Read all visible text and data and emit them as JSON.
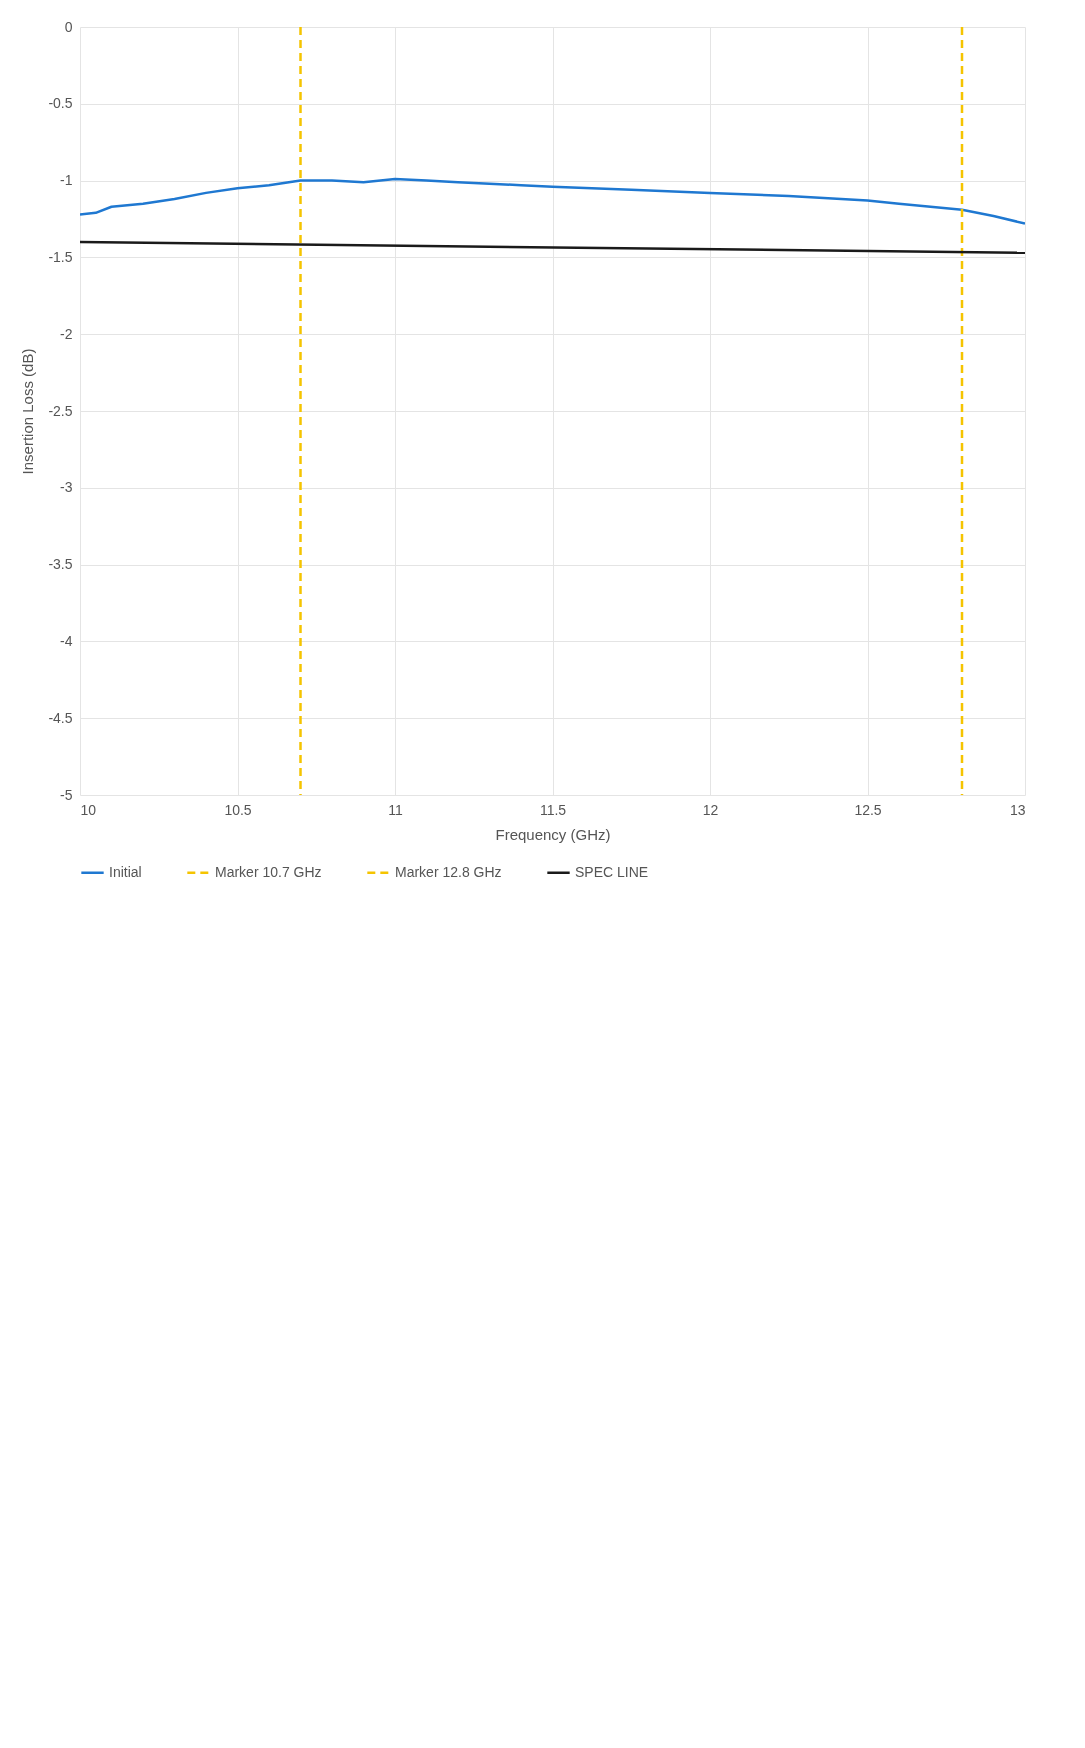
{
  "chart_data": {
    "type": "line",
    "xlabel": "Frequency (GHz)",
    "ylabel": "Insertion Loss (dB)",
    "xlim": [
      10,
      13
    ],
    "xticks": [
      10,
      10.5,
      11,
      11.5,
      12,
      12.5,
      13
    ],
    "ylim": [
      -5,
      0
    ],
    "yticks": [
      -5,
      -4.5,
      -4,
      -3.5,
      -3,
      -2.5,
      -2,
      -1.5,
      -1,
      -0.5,
      0
    ],
    "grid": true,
    "legend": "bottom",
    "line_style": "solid",
    "series": [
      {
        "name": "Initial",
        "color": "#1f78d1",
        "x": [
          10,
          10.05,
          10.1,
          10.2,
          10.3,
          10.4,
          10.5,
          10.6,
          10.7,
          10.8,
          10.9,
          11,
          11.1,
          11.2,
          11.3,
          11.4,
          11.5,
          11.75,
          12,
          12.25,
          12.5,
          12.6,
          12.7,
          12.8,
          12.9,
          13
        ],
        "values": [
          -1.22,
          -1.21,
          -1.17,
          -1.15,
          -1.12,
          -1.08,
          -1.05,
          -1.03,
          -1.0,
          -1.0,
          -1.01,
          -0.99,
          -1.0,
          -1.01,
          -1.02,
          -1.03,
          -1.04,
          -1.06,
          -1.08,
          -1.1,
          -1.13,
          -1.15,
          -1.17,
          -1.19,
          -1.23,
          -1.28
        ]
      },
      {
        "name": "Marker 10.7 GHz",
        "color": "#f5c400",
        "line_style": "dashed",
        "x": [
          10.7,
          10.7
        ],
        "values": [
          0,
          -5
        ]
      },
      {
        "name": "Marker 12.8 GHz",
        "color": "#f5c400",
        "line_style": "dashed",
        "x": [
          12.8,
          12.8
        ],
        "values": [
          0,
          -5
        ]
      },
      {
        "name": "SPEC LINE",
        "color": "#1a1a1a",
        "x": [
          10,
          13
        ],
        "values": [
          -1.4,
          -1.47
        ]
      }
    ]
  }
}
